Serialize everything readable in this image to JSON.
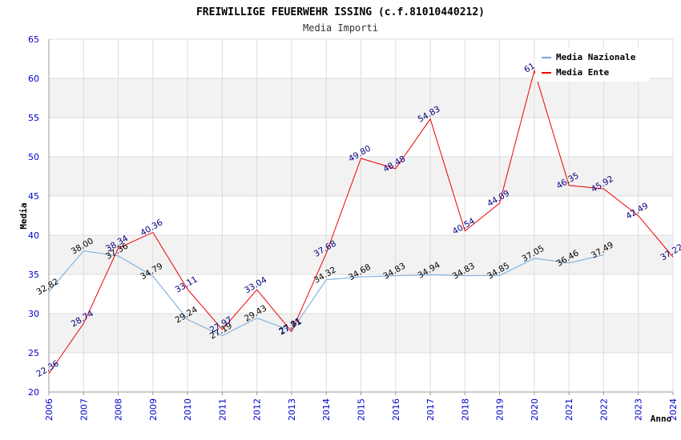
{
  "chart_data": {
    "type": "line",
    "title": "FREIWILLIGE FEUERWEHR ISSING (c.f.81010440212)",
    "subtitle": "Media Importi",
    "xlabel": "Anno",
    "ylabel": "Media",
    "x": [
      "2006",
      "2007",
      "2008",
      "2009",
      "2010",
      "2011",
      "2012",
      "2013",
      "2014",
      "2015",
      "2016",
      "2017",
      "2018",
      "2019",
      "2020",
      "2021",
      "2022",
      "2023",
      "2024"
    ],
    "ylim": [
      20,
      65
    ],
    "yticks": [
      20,
      25,
      30,
      35,
      40,
      45,
      50,
      55,
      60,
      65
    ],
    "grid": true,
    "legend_position": "top-right",
    "series": [
      {
        "name": "Media Nazionale",
        "color": "#6fa8dc",
        "label_color": "#000000",
        "values": [
          32.82,
          38.0,
          37.36,
          34.79,
          29.24,
          27.19,
          29.43,
          27.81,
          34.32,
          34.68,
          34.83,
          34.94,
          34.83,
          34.85,
          37.05,
          36.46,
          37.49,
          null,
          null
        ],
        "labels": [
          "32.82",
          "38.00",
          "37.36",
          "34.79",
          "29.24",
          "27.19",
          "29.43",
          "27.81",
          "34.32",
          "34.68",
          "34.83",
          "34.94",
          "34.83",
          "34.85",
          "37.05",
          "36.46",
          "37.49",
          "",
          ""
        ]
      },
      {
        "name": "Media Ente",
        "color": "#ee0000",
        "label_color": "#000080",
        "values": [
          22.36,
          28.74,
          38.34,
          40.36,
          33.11,
          27.97,
          33.04,
          27.71,
          37.68,
          49.8,
          48.48,
          54.83,
          40.54,
          44.09,
          61.0,
          46.35,
          45.92,
          42.49,
          37.22
        ],
        "labels": [
          "22.36",
          "28.74",
          "38.34",
          "40.36",
          "33.11",
          "27.97",
          "33.04",
          "27.71",
          "37.68",
          "49.80",
          "48.48",
          "54.83",
          "40.54",
          "44.09",
          "61.0",
          "46.35",
          "45.92",
          "42.49",
          "37.22"
        ]
      }
    ]
  }
}
